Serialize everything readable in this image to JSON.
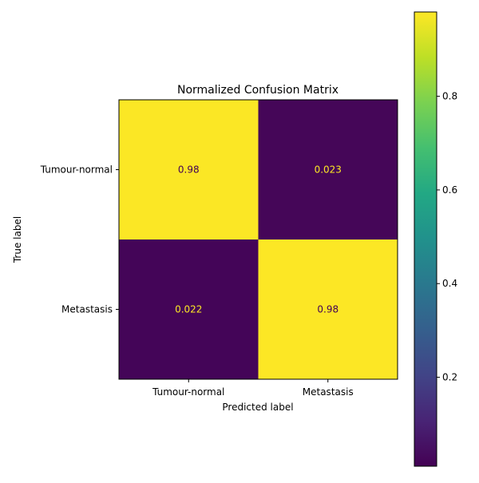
{
  "chart_data": {
    "type": "heatmap",
    "title": "Normalized Confusion Matrix",
    "xlabel": "Predicted label",
    "ylabel": "True label",
    "x_categories": [
      "Tumour-normal",
      "Metastasis"
    ],
    "y_categories": [
      "Tumour-normal",
      "Metastasis"
    ],
    "values": [
      [
        0.977,
        0.023
      ],
      [
        0.022,
        0.978
      ]
    ],
    "cell_labels": [
      [
        "0.98",
        "0.023"
      ],
      [
        "0.022",
        "0.98"
      ]
    ],
    "colormap": "viridis",
    "colorbar": {
      "range": [
        0.01,
        0.98
      ],
      "ticks": [
        0.2,
        0.4,
        0.6,
        0.8
      ],
      "tick_labels": [
        "0.2",
        "0.4",
        "0.6",
        "0.8"
      ]
    },
    "label_color_on_dark": "#fde725",
    "label_color_on_light": "#440154",
    "grid": false
  }
}
